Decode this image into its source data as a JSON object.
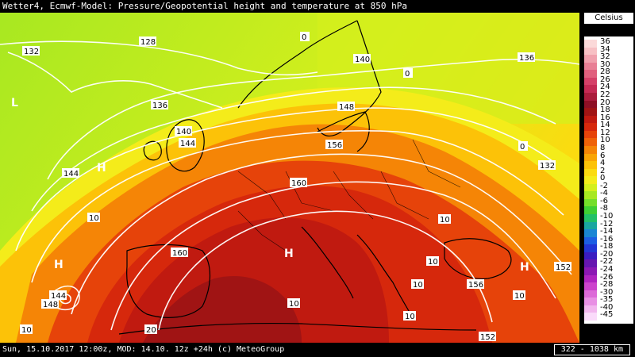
{
  "header": {
    "title": "Wetter4, Ecmwf-Model: Pressure/Geopotential height and temperature at 850 hPa"
  },
  "footer": {
    "timestamp": "Sun, 15.10.2017 12:00z, MOD: 14.10. 12z +24h (c) MeteoGroup",
    "scale": "322 - 1038 km"
  },
  "legend": {
    "unit": "Celsius",
    "entries": [
      {
        "label": "36",
        "color": "#fbd9d9"
      },
      {
        "label": "34",
        "color": "#f7c0c4"
      },
      {
        "label": "32",
        "color": "#f0a0ad"
      },
      {
        "label": "30",
        "color": "#e87f95"
      },
      {
        "label": "28",
        "color": "#e0607e"
      },
      {
        "label": "26",
        "color": "#d54068"
      },
      {
        "label": "24",
        "color": "#c52a54"
      },
      {
        "label": "22",
        "color": "#aa1c3c"
      },
      {
        "label": "20",
        "color": "#8e0f25"
      },
      {
        "label": "18",
        "color": "#a01414"
      },
      {
        "label": "16",
        "color": "#c01a10"
      },
      {
        "label": "14",
        "color": "#d6280c"
      },
      {
        "label": "12",
        "color": "#e6430a"
      },
      {
        "label": "10",
        "color": "#ef6208"
      },
      {
        "label": "8",
        "color": "#f58506"
      },
      {
        "label": "6",
        "color": "#f9a505"
      },
      {
        "label": "4",
        "color": "#fcc208"
      },
      {
        "label": "2",
        "color": "#fbdb10"
      },
      {
        "label": "0",
        "color": "#f4ec1a"
      },
      {
        "label": "-2",
        "color": "#d4ef1c"
      },
      {
        "label": "-4",
        "color": "#a8e821"
      },
      {
        "label": "-6",
        "color": "#74de2a"
      },
      {
        "label": "-8",
        "color": "#3ecf34"
      },
      {
        "label": "-10",
        "color": "#22c068"
      },
      {
        "label": "-12",
        "color": "#1aa6a0"
      },
      {
        "label": "-14",
        "color": "#1a86d4"
      },
      {
        "label": "-16",
        "color": "#1c5ee4"
      },
      {
        "label": "-18",
        "color": "#2236d6"
      },
      {
        "label": "-20",
        "color": "#3a1cc0"
      },
      {
        "label": "-22",
        "color": "#6616b0"
      },
      {
        "label": "-24",
        "color": "#8c18b4"
      },
      {
        "label": "-26",
        "color": "#b024c0"
      },
      {
        "label": "-28",
        "color": "#cc44cc"
      },
      {
        "label": "-30",
        "color": "#dc6ad8"
      },
      {
        "label": "-35",
        "color": "#e890e4"
      },
      {
        "label": "-40",
        "color": "#f2b6ee"
      },
      {
        "label": "-45",
        "color": "#fadafa"
      }
    ]
  },
  "map": {
    "contour_labels": [
      "132",
      "128",
      "136",
      "140",
      "144",
      "148",
      "156",
      "160",
      "132",
      "136",
      "140",
      "144",
      "152",
      "156",
      "160",
      "152",
      "144",
      "148"
    ],
    "temperature_labels": [
      "10",
      "10",
      "10",
      "10",
      "10",
      "10",
      "10",
      "10",
      "0",
      "0",
      "0",
      "20"
    ],
    "pressure_centers": [
      "L",
      "H",
      "H",
      "H",
      "H"
    ]
  }
}
